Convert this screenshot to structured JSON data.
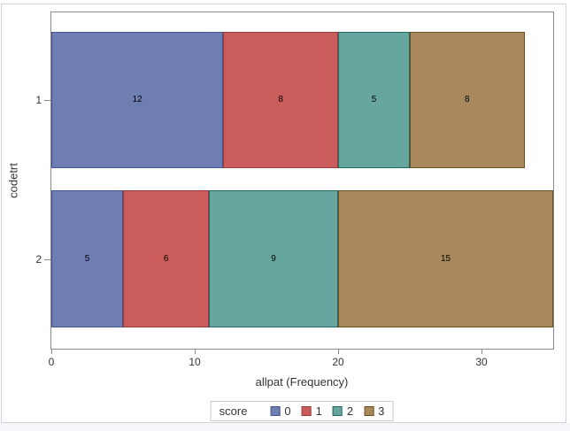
{
  "colors": {
    "page_background": "#ffffff",
    "bottom_strip": "#f4f6fa",
    "canvas_border": "#d2d3da",
    "wall_border": "#8a8a8a",
    "tick": "#8a8a8a",
    "text": "#333333",
    "segment_label": "#000000",
    "legend_border": "#c9c9c9"
  },
  "chart_data": {
    "type": "bar",
    "orientation": "horizontal",
    "stacked": true,
    "title": "",
    "categories": [
      "1",
      "2"
    ],
    "series": [
      {
        "name": "0",
        "values": [
          12,
          5
        ],
        "fill": "#6F7EB2",
        "outline": "#445694"
      },
      {
        "name": "1",
        "values": [
          8,
          6
        ],
        "fill": "#CB5C5C",
        "outline": "#973B38"
      },
      {
        "name": "2",
        "values": [
          5,
          9
        ],
        "fill": "#66A69E",
        "outline": "#1E6A60"
      },
      {
        "name": "3",
        "values": [
          8,
          15
        ],
        "fill": "#A8885C",
        "outline": "#6F4E1E"
      }
    ],
    "bar_totals": [
      33,
      35
    ],
    "xlabel": "allpat (Frequency)",
    "ylabel": "codetrt",
    "xlim": [
      0,
      35
    ],
    "xticks": [
      0,
      10,
      20,
      30
    ],
    "grid": false,
    "bar_value_labels": true,
    "legend": {
      "title": "score",
      "entries": [
        "0",
        "1",
        "2",
        "3"
      ],
      "position": "bottom-center"
    }
  }
}
